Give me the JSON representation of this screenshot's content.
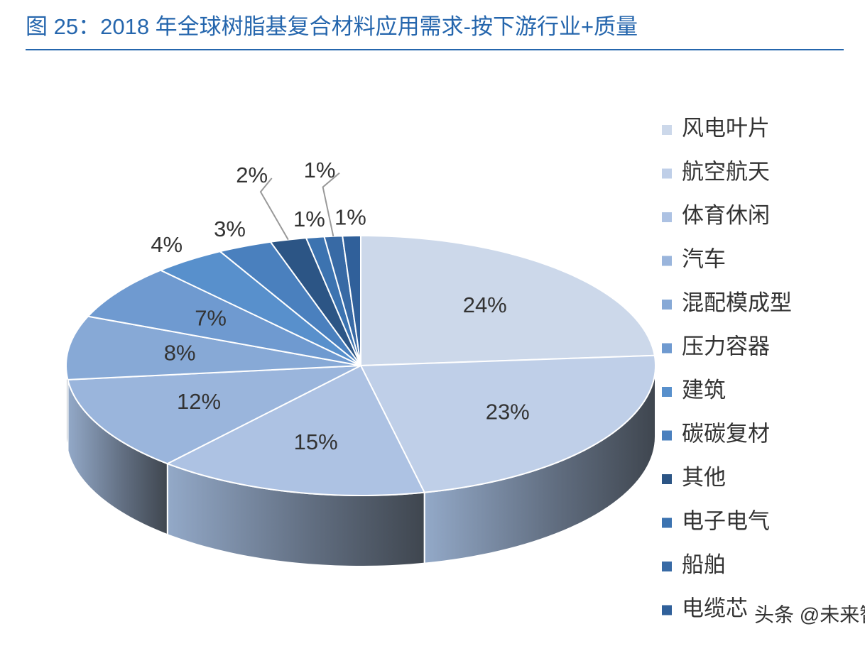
{
  "chart_data": {
    "type": "pie",
    "title": "图 25：2018 年全球树脂基复合材料应用需求-按下游行业+质量",
    "categories": [
      "风电叶片",
      "航空航天",
      "体育休闲",
      "汽车",
      "混配模成型",
      "压力容器",
      "建筑",
      "碳碳复材",
      "其他",
      "电子电气",
      "船舶",
      "电缆芯"
    ],
    "values": [
      24,
      23,
      15,
      12,
      8,
      7,
      4,
      3,
      2,
      1,
      1,
      1
    ],
    "value_labels": [
      "24%",
      "23%",
      "15%",
      "12%",
      "8%",
      "7%",
      "4%",
      "3%",
      "2%",
      "1%",
      "1%",
      "1%"
    ],
    "colors": [
      "#ccd8ea",
      "#bfcfe8",
      "#adc2e3",
      "#9ab5dc",
      "#87a9d6",
      "#6f9ad0",
      "#5890cc",
      "#4a80be",
      "#2c5585",
      "#3c73b0",
      "#386aa5",
      "#30609a"
    ],
    "legend": "right"
  },
  "watermark": "头条 @未来智库"
}
